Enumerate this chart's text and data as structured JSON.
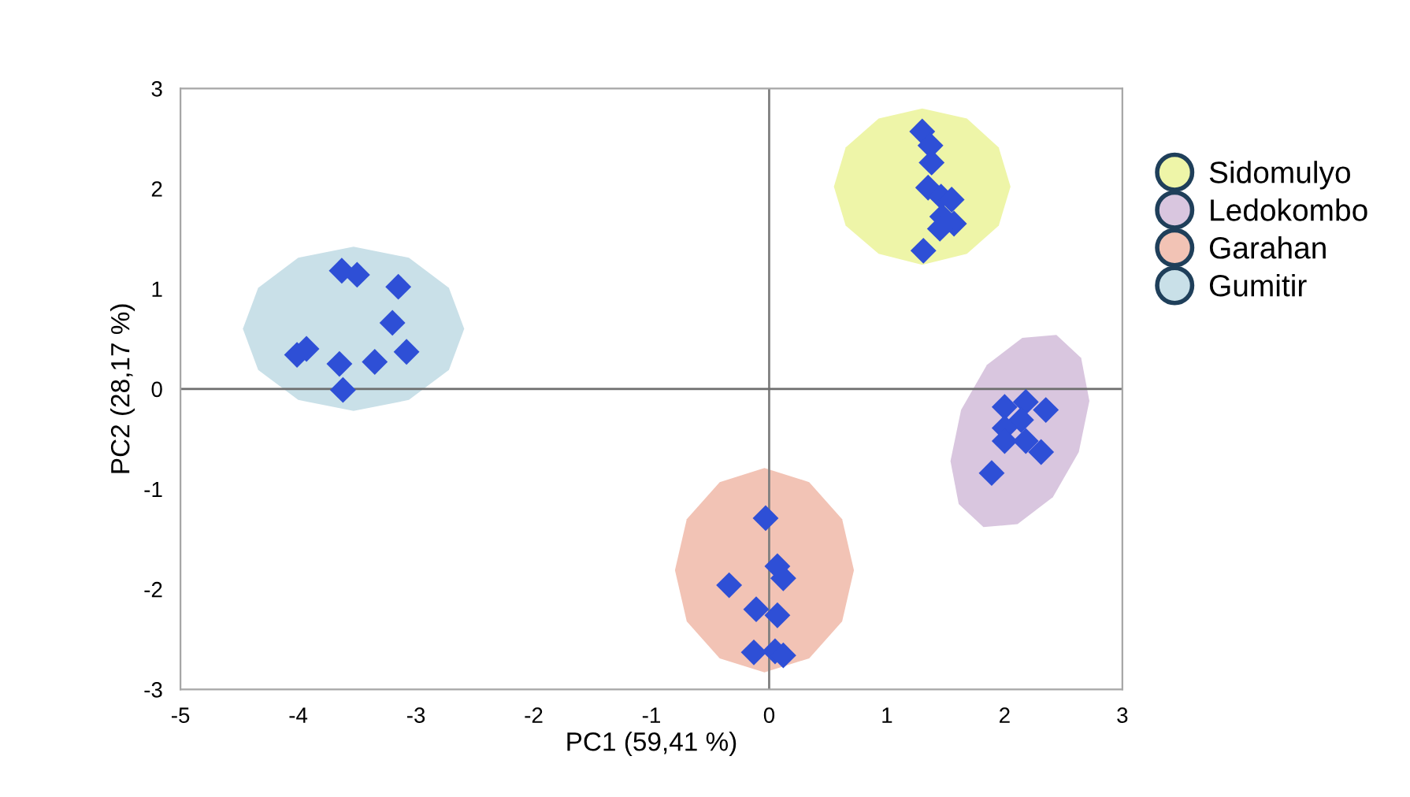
{
  "chart_data": {
    "type": "scatter",
    "xlabel": "PC1 (59,41 %)",
    "ylabel": "PC2 (28,17 %)",
    "xlim": [
      -5,
      3
    ],
    "xticks": [
      -5,
      -4,
      -3,
      -2,
      -1,
      0,
      1,
      2,
      3
    ],
    "ylim": [
      -3,
      3
    ],
    "yticks": [
      -3,
      -2,
      -1,
      0,
      1,
      2,
      3
    ],
    "grid": false,
    "legend": "right",
    "ref_lines": [
      {
        "axis": "x",
        "value": 0,
        "color": "#7f7f7f"
      },
      {
        "axis": "y",
        "value": 0,
        "color": "#6e6e6e"
      }
    ],
    "series": [
      {
        "name": "Sidomulyo",
        "type": "area",
        "color": "#eef5a8",
        "x": [
          2.05,
          1.95,
          1.68,
          1.3,
          0.93,
          0.65,
          0.55,
          0.65,
          0.93,
          1.3,
          1.68,
          1.95
        ],
        "values": [
          2.02,
          2.41,
          2.7,
          2.8,
          2.7,
          2.41,
          2.02,
          1.63,
          1.35,
          1.24,
          1.35,
          1.63
        ]
      },
      {
        "name": "Ledokombo",
        "type": "area",
        "color": "#d9c6df",
        "x": [
          2.44,
          2.65,
          2.72,
          2.63,
          2.41,
          2.11,
          1.82,
          1.61,
          1.54,
          1.63,
          1.85,
          2.15
        ],
        "values": [
          0.54,
          0.31,
          -0.12,
          -0.63,
          -1.08,
          -1.35,
          -1.38,
          -1.15,
          -0.72,
          -0.21,
          0.24,
          0.51
        ]
      },
      {
        "name": "Garahan",
        "type": "area",
        "color": "#f2c3b5",
        "x": [
          0.72,
          0.62,
          0.34,
          -0.04,
          -0.42,
          -0.7,
          -0.8,
          -0.7,
          -0.42,
          -0.04,
          0.34,
          0.62
        ],
        "values": [
          -1.81,
          -1.3,
          -0.93,
          -0.79,
          -0.93,
          -1.3,
          -1.81,
          -2.32,
          -2.69,
          -2.83,
          -2.69,
          -2.32
        ]
      },
      {
        "name": "Gumitir",
        "type": "area",
        "color": "#c9e0e8",
        "x": [
          -2.59,
          -2.72,
          -3.06,
          -3.53,
          -4.0,
          -4.34,
          -4.47,
          -4.34,
          -4.0,
          -3.53,
          -3.06,
          -2.72
        ],
        "values": [
          0.6,
          1.01,
          1.31,
          1.42,
          1.31,
          1.01,
          0.6,
          0.19,
          -0.11,
          -0.22,
          -0.11,
          0.19
        ]
      },
      {
        "marker": "diamond",
        "color": "#2e4fd6",
        "x": [
          -3.63,
          -3.5,
          -3.15,
          -3.2,
          -3.08,
          -3.35,
          -3.65,
          -4.01,
          -3.93,
          -3.62,
          1.3,
          1.37,
          1.38,
          1.35,
          1.46,
          1.55,
          1.47,
          1.57,
          1.45,
          1.31,
          2.0,
          2.18,
          2.35,
          2.14,
          2.0,
          2.0,
          2.18,
          2.31,
          1.89,
          -0.03,
          0.07,
          0.12,
          -0.34,
          -0.11,
          0.07,
          -0.13,
          0.05,
          0.12
        ],
        "values": [
          1.18,
          1.14,
          1.02,
          0.66,
          0.37,
          0.27,
          0.25,
          0.34,
          0.4,
          -0.01,
          2.57,
          2.43,
          2.26,
          2.01,
          1.92,
          1.89,
          1.72,
          1.65,
          1.6,
          1.38,
          -0.18,
          -0.13,
          -0.21,
          -0.31,
          -0.39,
          -0.52,
          -0.52,
          -0.63,
          -0.84,
          -1.29,
          -1.77,
          -1.89,
          -1.96,
          -2.2,
          -2.26,
          -2.63,
          -2.62,
          -2.66
        ]
      }
    ]
  }
}
